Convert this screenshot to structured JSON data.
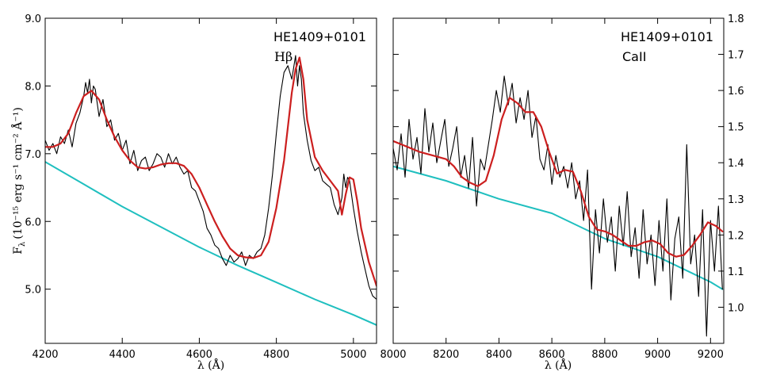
{
  "chart_data": [
    {
      "type": "line",
      "panel": "left",
      "ylabel_main": "F",
      "ylabel_sub": "λ",
      "ylabel_units": "(10⁻¹⁵ erg s⁻¹ cm⁻² Å⁻¹)",
      "xlabel": "λ (Å)",
      "xlim": [
        4200,
        5060
      ],
      "ylim": [
        4.2,
        9.0
      ],
      "xticks": [
        4200,
        4400,
        4600,
        4800,
        5000
      ],
      "yticks": [
        "9.0",
        "8.0",
        "7.0",
        "6.0",
        "5.0"
      ],
      "ytick_values": [
        9.0,
        8.0,
        7.0,
        6.0,
        5.0
      ],
      "annotations": [
        "HE1409+0101",
        "Hβ"
      ],
      "colors": {
        "observed": "#000000",
        "model": "#cc1f1f",
        "continuum": "#1fbfbf"
      },
      "series": [
        {
          "name": "observed",
          "x": [
            4200,
            4210,
            4220,
            4230,
            4240,
            4250,
            4260,
            4270,
            4280,
            4290,
            4300,
            4305,
            4310,
            4315,
            4320,
            4325,
            4330,
            4340,
            4350,
            4360,
            4370,
            4380,
            4390,
            4400,
            4410,
            4420,
            4430,
            4440,
            4450,
            4460,
            4470,
            4480,
            4490,
            4500,
            4510,
            4520,
            4530,
            4540,
            4550,
            4560,
            4570,
            4580,
            4590,
            4600,
            4610,
            4620,
            4630,
            4640,
            4650,
            4660,
            4670,
            4680,
            4690,
            4700,
            4710,
            4720,
            4730,
            4740,
            4750,
            4760,
            4770,
            4780,
            4790,
            4800,
            4810,
            4820,
            4830,
            4840,
            4850,
            4855,
            4860,
            4865,
            4870,
            4880,
            4890,
            4900,
            4910,
            4920,
            4930,
            4940,
            4950,
            4960,
            4970,
            4975,
            4980,
            4985,
            4990,
            5000,
            5010,
            5020,
            5030,
            5040,
            5050,
            5060
          ],
          "y": [
            7.2,
            7.05,
            7.15,
            7.0,
            7.25,
            7.15,
            7.35,
            7.1,
            7.45,
            7.6,
            7.85,
            8.05,
            7.9,
            8.1,
            7.75,
            8.0,
            7.95,
            7.55,
            7.8,
            7.4,
            7.5,
            7.2,
            7.3,
            7.05,
            7.2,
            6.85,
            7.05,
            6.75,
            6.9,
            6.95,
            6.75,
            6.85,
            7.0,
            6.95,
            6.8,
            7.0,
            6.85,
            6.95,
            6.8,
            6.7,
            6.75,
            6.5,
            6.45,
            6.3,
            6.15,
            5.9,
            5.8,
            5.65,
            5.6,
            5.45,
            5.35,
            5.5,
            5.4,
            5.45,
            5.55,
            5.35,
            5.5,
            5.45,
            5.55,
            5.6,
            5.8,
            6.2,
            6.7,
            7.3,
            7.85,
            8.2,
            8.3,
            8.1,
            8.45,
            8.0,
            8.3,
            8.1,
            7.6,
            7.2,
            6.9,
            6.75,
            6.8,
            6.6,
            6.55,
            6.5,
            6.25,
            6.1,
            6.35,
            6.7,
            6.5,
            6.65,
            6.6,
            6.2,
            5.85,
            5.55,
            5.3,
            5.05,
            4.9,
            4.85
          ]
        },
        {
          "name": "model",
          "x": [
            4200,
            4220,
            4240,
            4260,
            4280,
            4300,
            4320,
            4340,
            4360,
            4380,
            4400,
            4420,
            4440,
            4460,
            4480,
            4500,
            4520,
            4540,
            4560,
            4580,
            4600,
            4620,
            4640,
            4660,
            4680,
            4700,
            4720,
            4740,
            4760,
            4780,
            4800,
            4820,
            4830,
            4840,
            4850,
            4860,
            4870,
            4880,
            4900,
            4920,
            4940,
            4960,
            4970,
            4980,
            4990,
            5000,
            5010,
            5020,
            5040,
            5060
          ],
          "y": [
            7.1,
            7.1,
            7.15,
            7.3,
            7.6,
            7.85,
            7.93,
            7.8,
            7.5,
            7.25,
            7.05,
            6.9,
            6.8,
            6.78,
            6.8,
            6.84,
            6.86,
            6.86,
            6.82,
            6.7,
            6.5,
            6.25,
            6.0,
            5.78,
            5.6,
            5.5,
            5.47,
            5.46,
            5.5,
            5.7,
            6.2,
            6.9,
            7.4,
            7.9,
            8.25,
            8.42,
            8.1,
            7.5,
            6.95,
            6.75,
            6.6,
            6.45,
            6.1,
            6.4,
            6.65,
            6.62,
            6.3,
            5.9,
            5.4,
            5.05
          ]
        },
        {
          "name": "continuum",
          "x": [
            4200,
            4300,
            4400,
            4500,
            4600,
            4700,
            4800,
            4900,
            5000,
            5060
          ],
          "y": [
            6.88,
            6.55,
            6.22,
            5.92,
            5.62,
            5.35,
            5.1,
            4.85,
            4.62,
            4.47
          ]
        }
      ]
    },
    {
      "type": "line",
      "panel": "right",
      "xlabel": "λ (Å)",
      "xlim": [
        8000,
        9250
      ],
      "ylim": [
        0.9,
        1.8
      ],
      "xticks": [
        8000,
        8200,
        8400,
        8600,
        8800,
        9000,
        9200
      ],
      "yticks": [
        "1.8",
        "1.7",
        "1.6",
        "1.5",
        "1.4",
        "1.3",
        "1.2",
        "1.1",
        "1.0"
      ],
      "ytick_values": [
        1.8,
        1.7,
        1.6,
        1.5,
        1.4,
        1.3,
        1.2,
        1.1,
        1.0
      ],
      "annotations": [
        "HE1409+0101",
        "CaII"
      ],
      "colors": {
        "observed": "#000000",
        "model": "#cc1f1f",
        "continuum": "#1fbfbf"
      },
      "series": [
        {
          "name": "observed",
          "x": [
            8000,
            8015,
            8030,
            8045,
            8060,
            8075,
            8090,
            8105,
            8120,
            8135,
            8150,
            8165,
            8180,
            8195,
            8210,
            8225,
            8240,
            8255,
            8270,
            8285,
            8300,
            8315,
            8330,
            8345,
            8360,
            8375,
            8390,
            8405,
            8420,
            8435,
            8450,
            8465,
            8480,
            8495,
            8510,
            8525,
            8540,
            8555,
            8570,
            8585,
            8600,
            8615,
            8630,
            8645,
            8660,
            8675,
            8690,
            8705,
            8720,
            8735,
            8750,
            8765,
            8780,
            8795,
            8810,
            8825,
            8840,
            8855,
            8870,
            8885,
            8900,
            8915,
            8930,
            8945,
            8960,
            8975,
            8990,
            9005,
            9020,
            9035,
            9050,
            9065,
            9080,
            9095,
            9110,
            9125,
            9140,
            9155,
            9170,
            9185,
            9200,
            9215,
            9230,
            9245
          ],
          "y": [
            1.44,
            1.38,
            1.48,
            1.36,
            1.52,
            1.41,
            1.47,
            1.37,
            1.55,
            1.43,
            1.51,
            1.4,
            1.46,
            1.52,
            1.39,
            1.44,
            1.5,
            1.36,
            1.42,
            1.33,
            1.47,
            1.28,
            1.41,
            1.38,
            1.45,
            1.52,
            1.6,
            1.54,
            1.64,
            1.56,
            1.62,
            1.51,
            1.58,
            1.52,
            1.6,
            1.47,
            1.53,
            1.41,
            1.38,
            1.45,
            1.34,
            1.42,
            1.36,
            1.39,
            1.33,
            1.4,
            1.3,
            1.35,
            1.24,
            1.38,
            1.05,
            1.27,
            1.15,
            1.3,
            1.18,
            1.25,
            1.1,
            1.28,
            1.17,
            1.32,
            1.14,
            1.22,
            1.08,
            1.27,
            1.12,
            1.2,
            1.06,
            1.24,
            1.1,
            1.3,
            1.02,
            1.19,
            1.25,
            1.08,
            1.45,
            1.12,
            1.2,
            1.03,
            1.27,
            0.92,
            1.24,
            1.1,
            1.28,
            1.05
          ]
        },
        {
          "name": "model",
          "x": [
            8000,
            8050,
            8100,
            8150,
            8200,
            8230,
            8260,
            8290,
            8320,
            8350,
            8380,
            8410,
            8440,
            8470,
            8500,
            8530,
            8560,
            8590,
            8620,
            8650,
            8680,
            8710,
            8740,
            8770,
            8800,
            8830,
            8860,
            8890,
            8920,
            8950,
            8980,
            9010,
            9040,
            9070,
            9100,
            9130,
            9160,
            9190,
            9220,
            9245
          ],
          "y": [
            1.46,
            1.445,
            1.43,
            1.42,
            1.41,
            1.39,
            1.36,
            1.345,
            1.335,
            1.35,
            1.42,
            1.52,
            1.58,
            1.565,
            1.54,
            1.54,
            1.5,
            1.43,
            1.37,
            1.38,
            1.375,
            1.32,
            1.25,
            1.215,
            1.21,
            1.2,
            1.185,
            1.17,
            1.17,
            1.18,
            1.185,
            1.175,
            1.15,
            1.14,
            1.145,
            1.17,
            1.2,
            1.235,
            1.225,
            1.21
          ]
        },
        {
          "name": "continuum",
          "x": [
            8000,
            8200,
            8400,
            8600,
            8800,
            9000,
            9200,
            9245
          ],
          "y": [
            1.39,
            1.35,
            1.3,
            1.26,
            1.19,
            1.14,
            1.07,
            1.05
          ]
        }
      ]
    }
  ]
}
